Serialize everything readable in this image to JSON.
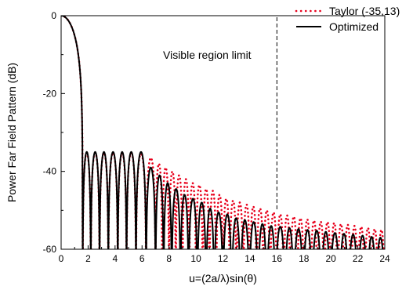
{
  "chart_data": {
    "type": "line",
    "title": "",
    "xlabel": "u=(2a/λ)sin(θ)",
    "ylabel": "Power Far Field Pattern (dB)",
    "xlim": [
      0,
      24
    ],
    "ylim": [
      -60,
      0
    ],
    "x_ticks": [
      0,
      2,
      4,
      6,
      8,
      10,
      12,
      14,
      16,
      18,
      20,
      22,
      24
    ],
    "y_ticks": [
      0,
      -20,
      -40,
      -60
    ],
    "grid": false,
    "legend_position": "top-right",
    "colors": {
      "taylor": "#e8001c",
      "optimized": "#000000"
    },
    "annotation": {
      "text": "Visible region limit",
      "x": 16
    },
    "series": [
      {
        "name": "Taylor (-35,13)",
        "style": "dotted",
        "mainlobe_null": 1.6,
        "nulls": [
          1.6,
          2.2,
          2.85,
          3.5,
          4.2,
          4.85,
          5.55,
          6.3,
          7.0,
          7.5,
          8.0,
          8.5,
          9.0,
          9.5,
          10.0,
          10.5,
          11.0,
          11.5,
          12.0,
          12.5,
          13.0,
          13.5,
          14.0,
          14.5,
          15.0,
          15.5,
          16.0,
          16.5,
          17.0,
          17.5,
          18.0,
          18.5,
          19.0,
          19.5,
          20.0,
          20.5,
          21.0,
          21.5,
          22.0,
          22.5,
          23.0,
          23.5,
          24.0
        ],
        "peaks": [
          -35.2,
          -35.2,
          -35.2,
          -35.2,
          -35.3,
          -35.3,
          -35.5,
          -36.5,
          -38.0,
          -39.0,
          -40.0,
          -41.0,
          -42.0,
          -43.0,
          -43.5,
          -44.5,
          -45.0,
          -46.0,
          -47.0,
          -47.5,
          -48.0,
          -48.5,
          -49.0,
          -49.5,
          -50.0,
          -50.5,
          -51.0,
          -51.3,
          -51.6,
          -52.0,
          -52.3,
          -52.6,
          -52.9,
          -53.0,
          -53.2,
          -53.5,
          -53.7,
          -54.0,
          -54.2,
          -54.5,
          -54.8,
          -55.0
        ]
      },
      {
        "name": "Optimized",
        "style": "solid",
        "mainlobe_null": 1.6,
        "nulls": [
          1.6,
          2.2,
          2.85,
          3.5,
          4.2,
          4.85,
          5.55,
          6.3,
          7.0,
          7.6,
          8.2,
          8.85,
          9.45,
          10.1,
          10.75,
          11.35,
          12.0,
          12.65,
          13.3,
          13.95,
          14.6,
          15.25,
          15.9,
          16.6,
          17.25,
          17.95,
          18.6,
          19.3,
          19.95,
          20.65,
          21.3,
          22.0,
          22.7,
          23.35,
          24.0
        ],
        "peaks": [
          -35.0,
          -35.0,
          -35.0,
          -35.0,
          -35.0,
          -35.0,
          -35.0,
          -39.0,
          -41.0,
          -43.0,
          -44.5,
          -46.0,
          -47.0,
          -48.0,
          -49.5,
          -50.5,
          -51.0,
          -52.0,
          -52.5,
          -53.0,
          -53.5,
          -54.0,
          -54.2,
          -54.5,
          -54.8,
          -55.0,
          -55.2,
          -55.5,
          -55.8,
          -56.0,
          -56.2,
          -56.5,
          -56.8,
          -57.0
        ]
      }
    ]
  }
}
